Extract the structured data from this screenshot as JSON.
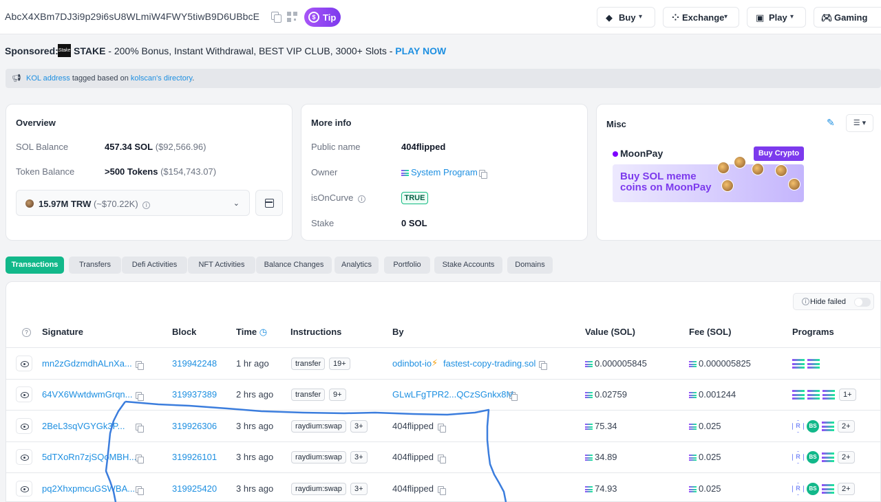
{
  "header": {
    "address": "AbcX4XBm7DJ3i9p29i6sU8WLmiW4FWY5tiwB9D6UBbcE",
    "tip_label": "Tip",
    "nav": [
      {
        "label": "Buy",
        "icon": "gem-icon"
      },
      {
        "label": "Exchange",
        "icon": "exchange-icon"
      },
      {
        "label": "Play",
        "icon": "play-icon"
      },
      {
        "label": "Gaming",
        "icon": "gamepad-icon"
      }
    ]
  },
  "sponsored": {
    "label": "Sponsored:",
    "brand": "STAKE",
    "text": " - 200% Bonus, Instant Withdrawal, BEST VIP CLUB, 3000+ Slots - ",
    "cta": "PLAY NOW"
  },
  "kol_notice": {
    "link1": "KOL address",
    "mid": " tagged based on ",
    "link2": "kolscan's directory",
    "end": "."
  },
  "overview": {
    "title": "Overview",
    "sol_balance_label": "SOL Balance",
    "sol_balance": "457.34 SOL",
    "sol_balance_usd": "($92,566.96)",
    "token_balance_label": "Token Balance",
    "token_balance": ">500 Tokens",
    "token_balance_usd": "($154,743.07)",
    "token_selected": "15.97M TRW",
    "token_selected_usd": "(~$70.22K)"
  },
  "more_info": {
    "title": "More info",
    "public_name_label": "Public name",
    "public_name": "404flipped",
    "owner_label": "Owner",
    "owner": "System Program",
    "is_on_curve_label": "isOnCurve",
    "is_on_curve": "TRUE",
    "stake_label": "Stake",
    "stake": "0 SOL"
  },
  "misc": {
    "title": "Misc",
    "banner_brand": "MoonPay",
    "banner_button": "Buy Crypto",
    "banner_line1": "Buy SOL meme",
    "banner_line2": "coins on MoonPay"
  },
  "tabs": [
    "Transactions",
    "Transfers",
    "Defi Activities",
    "NFT Activities",
    "Balance Changes",
    "Analytics",
    "Portfolio",
    "Stake Accounts",
    "Domains"
  ],
  "table": {
    "hide_failed": "Hide failed",
    "headers": [
      "Signature",
      "Block",
      "Time",
      "Instructions",
      "By",
      "Value (SOL)",
      "Fee (SOL)",
      "Programs"
    ],
    "rows": [
      {
        "signature": "mn2zGdzmdhALnXa...",
        "block": "319942248",
        "time": "1 hr ago",
        "instruction": "transfer",
        "more": "19+",
        "by_a": "odinbot-io",
        "by_b": "fastest-copy-trading.sol",
        "value": "0.000005845",
        "fee": "0.000005825",
        "programs": "sol2",
        "prog_more": ""
      },
      {
        "signature": "64VX6WwtdwmGrqn...",
        "block": "319937389",
        "time": "2 hrs ago",
        "instruction": "transfer",
        "more": "9+",
        "by_a": "GLwLFgTPR2...QCzSGnkx8M",
        "by_b": "",
        "value": "0.02759",
        "fee": "0.001244",
        "programs": "sol3",
        "prog_more": "1+"
      },
      {
        "signature": "2BeL3sqVGYGk3P...",
        "block": "319926306",
        "time": "3 hrs ago",
        "instruction": "raydium:swap",
        "more": "3+",
        "by_a": "404flipped",
        "by_b": "",
        "value": "75.34",
        "fee": "0.025",
        "programs": "ray",
        "prog_more": "2+"
      },
      {
        "signature": "5dTXoRn7zjSQoMBH...",
        "block": "319926101",
        "time": "3 hrs ago",
        "instruction": "raydium:swap",
        "more": "3+",
        "by_a": "404flipped",
        "by_b": "",
        "value": "34.89",
        "fee": "0.025",
        "programs": "ray",
        "prog_more": "2+"
      },
      {
        "signature": "pq2XhxpmcuGSWBA...",
        "block": "319925420",
        "time": "3 hrs ago",
        "instruction": "raydium:swap",
        "more": "3+",
        "by_a": "404flipped",
        "by_b": "",
        "value": "74.93",
        "fee": "0.025",
        "programs": "ray",
        "prog_more": "2+"
      }
    ]
  },
  "colors": {
    "accent": "#12b88a",
    "link": "#1d8fe1",
    "tip": "#8b5cf6",
    "annotation": "#3b7ddd"
  }
}
